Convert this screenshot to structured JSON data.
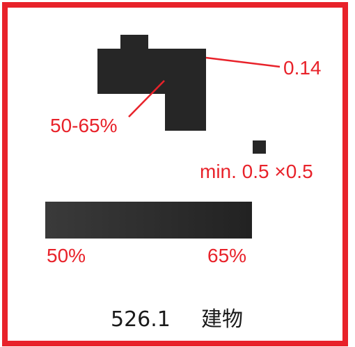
{
  "colors": {
    "frame": "#e8222a",
    "annotation": "#e8222a",
    "fill": "#262626",
    "background": "#ffffff",
    "caption_text": "#1a1a1a"
  },
  "labels": {
    "line_width": "0.14",
    "tone_range": "50-65%",
    "min_size": "min. 0.5 ×0.5",
    "tone_min": "50%",
    "tone_max": "65%"
  },
  "caption": {
    "number": "526.1",
    "name": "建物"
  }
}
